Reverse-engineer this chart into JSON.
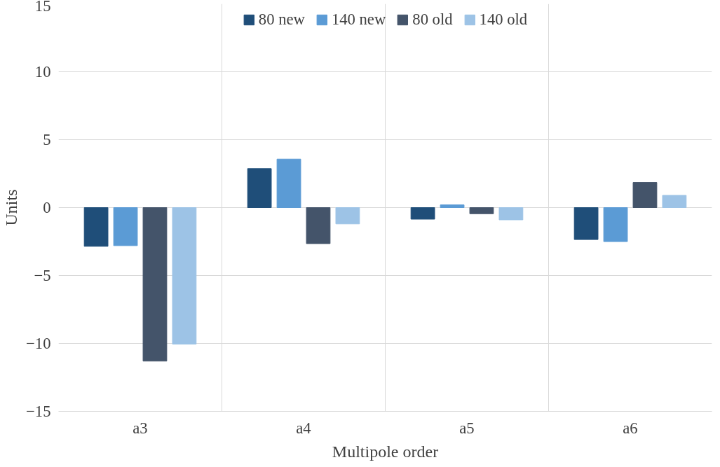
{
  "chart_data": {
    "type": "bar",
    "xlabel": "Multipole order",
    "ylabel": "Units",
    "categories": [
      "a3",
      "a4",
      "a5",
      "a6"
    ],
    "series": [
      {
        "name": "80 new",
        "color": "#1f4e79",
        "values": [
          -2.85,
          2.87,
          -0.85,
          -2.35
        ]
      },
      {
        "name": "140 new",
        "color": "#5b9bd5",
        "values": [
          -2.8,
          3.57,
          0.2,
          -2.5
        ]
      },
      {
        "name": "80 old",
        "color": "#44546a",
        "values": [
          -11.3,
          -2.65,
          -0.45,
          1.85
        ]
      },
      {
        "name": "140 old",
        "color": "#9dc3e6",
        "values": [
          -10.05,
          -1.2,
          -0.9,
          0.9
        ]
      }
    ],
    "ylim": [
      -15,
      15
    ],
    "yticks": [
      -15,
      -10,
      -5,
      0,
      5,
      10,
      15
    ],
    "grid": true,
    "legend": "top"
  }
}
